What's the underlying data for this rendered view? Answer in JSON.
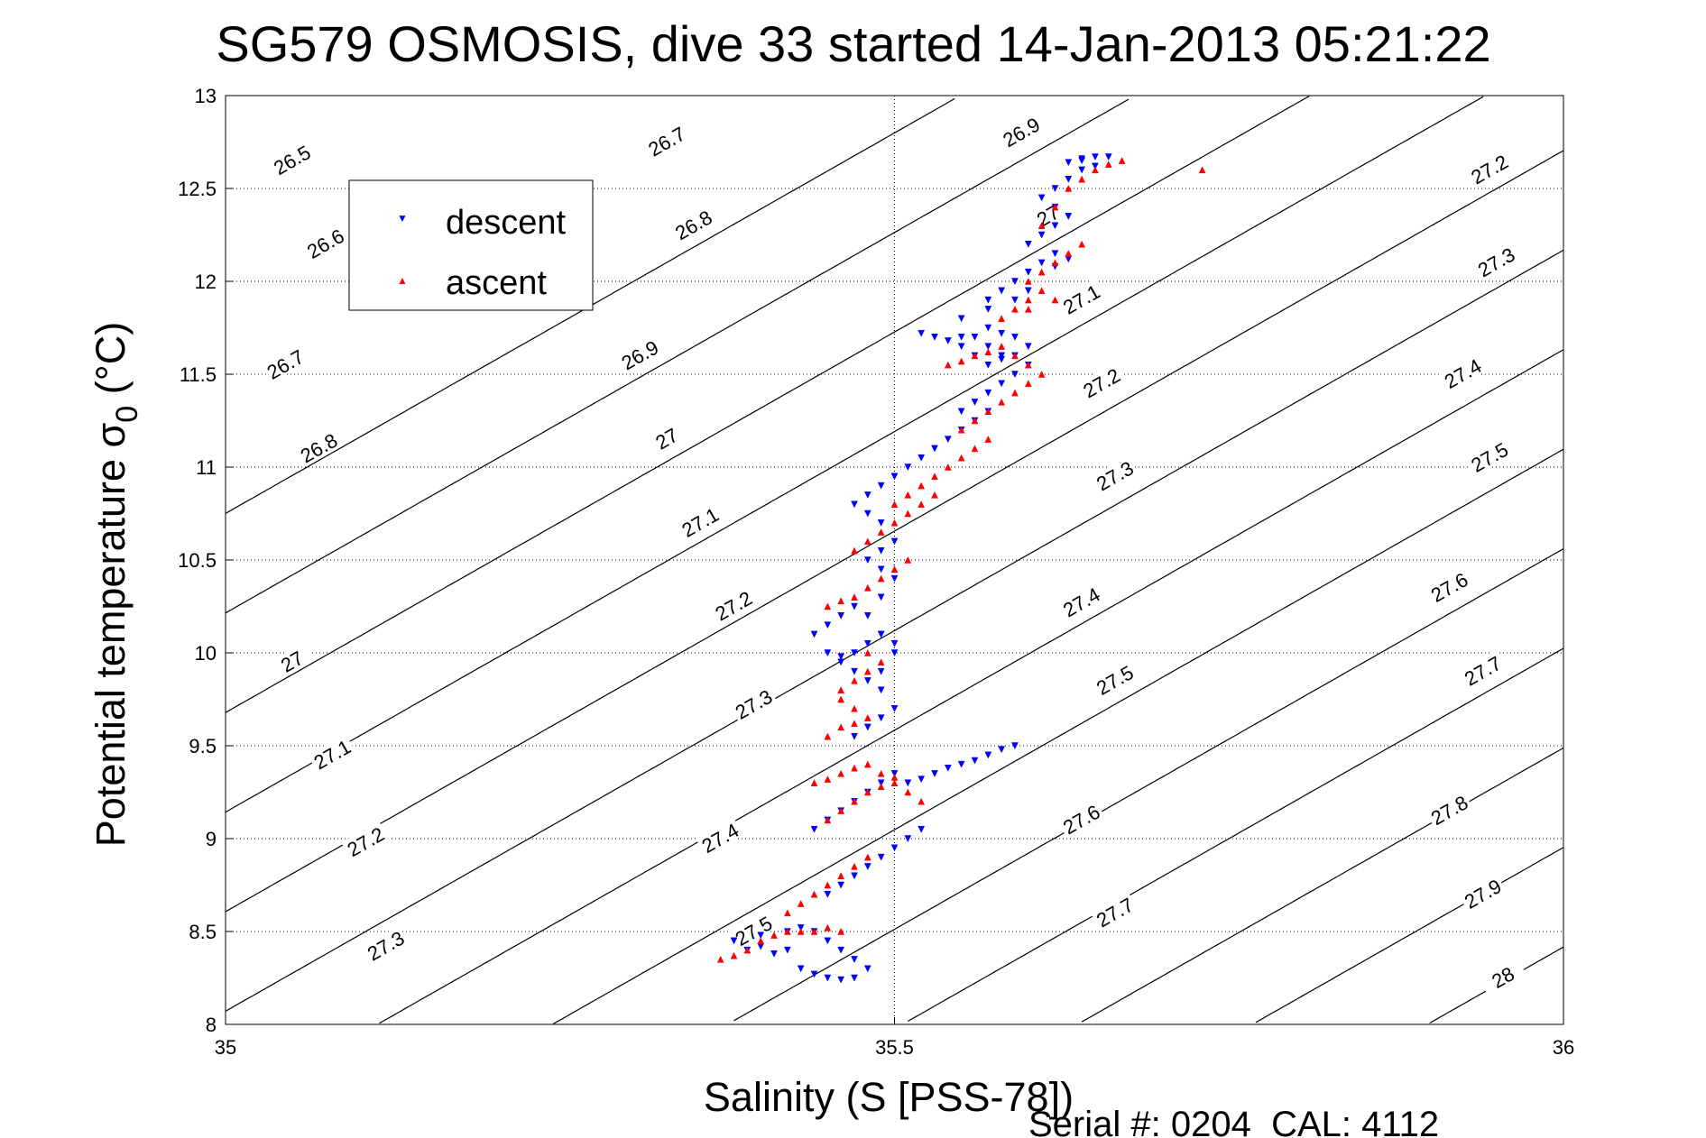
{
  "chart_data": {
    "type": "scatter",
    "title": "SG579 OSMOSIS, dive 33 started 14-Jan-2013 05:21:22",
    "xlabel": "Salinity (S [PSS-78])",
    "ylabel_main": "Potential temperature ",
    "ylabel_sigma": "σ",
    "ylabel_sub": "0",
    "ylabel_unit": " (°C)",
    "xlim": [
      35,
      36
    ],
    "ylim": [
      8,
      13
    ],
    "x_ticks": [
      "35",
      "35.5",
      "36"
    ],
    "y_ticks": [
      "8",
      "8.5",
      "9",
      "9.5",
      "10",
      "10.5",
      "11",
      "11.5",
      "12",
      "12.5",
      "13"
    ],
    "grid": "dotted",
    "legend": {
      "position": "top-left",
      "entries": [
        {
          "label": "descent",
          "color": "#0000ff",
          "marker": "triangle-down"
        },
        {
          "label": "ascent",
          "color": "#ff0000",
          "marker": "triangle-up"
        }
      ]
    },
    "footer": "Serial #: 0204  CAL: 4112",
    "contour_levels": [
      {
        "value": 26.5,
        "label": "26.5"
      },
      {
        "value": 26.6,
        "label": "26.6"
      },
      {
        "value": 26.7,
        "label": "26.7"
      },
      {
        "value": 26.8,
        "label": "26.8"
      },
      {
        "value": 26.9,
        "label": "26.9"
      },
      {
        "value": 27.0,
        "label": "27"
      },
      {
        "value": 27.1,
        "label": "27.1"
      },
      {
        "value": 27.2,
        "label": "27.2"
      },
      {
        "value": 27.3,
        "label": "27.3"
      },
      {
        "value": 27.4,
        "label": "27.4"
      },
      {
        "value": 27.5,
        "label": "27.5"
      },
      {
        "value": 27.6,
        "label": "27.6"
      },
      {
        "value": 27.7,
        "label": "27.7"
      },
      {
        "value": 27.8,
        "label": "27.8"
      },
      {
        "value": 27.9,
        "label": "27.9"
      },
      {
        "value": 28.0,
        "label": "28"
      }
    ],
    "contour_label_positions": [
      {
        "label": "26.5",
        "x": 35.05,
        "y": 12.65
      },
      {
        "label": "26.6",
        "x": 35.075,
        "y": 12.2
      },
      {
        "label": "26.7",
        "x": 35.045,
        "y": 11.55
      },
      {
        "label": "26.8",
        "x": 35.07,
        "y": 11.1
      },
      {
        "label": "27",
        "x": 35.05,
        "y": 9.95
      },
      {
        "label": "27.1",
        "x": 35.08,
        "y": 9.45
      },
      {
        "label": "27.2",
        "x": 35.105,
        "y": 8.98
      },
      {
        "label": "27.3",
        "x": 35.12,
        "y": 8.42
      },
      {
        "label": "26.7",
        "x": 35.33,
        "y": 12.75
      },
      {
        "label": "26.8",
        "x": 35.35,
        "y": 12.3
      },
      {
        "label": "26.9",
        "x": 35.31,
        "y": 11.6
      },
      {
        "label": "27",
        "x": 35.33,
        "y": 11.15
      },
      {
        "label": "27.1",
        "x": 35.355,
        "y": 10.7
      },
      {
        "label": "27.2",
        "x": 35.38,
        "y": 10.25
      },
      {
        "label": "27.3",
        "x": 35.395,
        "y": 9.72
      },
      {
        "label": "27.4",
        "x": 35.37,
        "y": 9.0
      },
      {
        "label": "27.5",
        "x": 35.395,
        "y": 8.5
      },
      {
        "label": "26.9",
        "x": 35.595,
        "y": 12.8
      },
      {
        "label": "27",
        "x": 35.615,
        "y": 12.35
      },
      {
        "label": "27.1",
        "x": 35.64,
        "y": 11.9
      },
      {
        "label": "27.2",
        "x": 35.655,
        "y": 11.45
      },
      {
        "label": "27.3",
        "x": 35.665,
        "y": 10.95
      },
      {
        "label": "27.4",
        "x": 35.64,
        "y": 10.27
      },
      {
        "label": "27.5",
        "x": 35.665,
        "y": 9.85
      },
      {
        "label": "27.6",
        "x": 35.64,
        "y": 9.1
      },
      {
        "label": "27.7",
        "x": 35.665,
        "y": 8.6
      },
      {
        "label": "27.2",
        "x": 35.945,
        "y": 12.6
      },
      {
        "label": "27.3",
        "x": 35.95,
        "y": 12.1
      },
      {
        "label": "27.4",
        "x": 35.925,
        "y": 11.5
      },
      {
        "label": "27.5",
        "x": 35.945,
        "y": 11.05
      },
      {
        "label": "27.6",
        "x": 35.915,
        "y": 10.35
      },
      {
        "label": "27.7",
        "x": 35.94,
        "y": 9.9
      },
      {
        "label": "27.8",
        "x": 35.915,
        "y": 9.15
      },
      {
        "label": "27.9",
        "x": 35.94,
        "y": 8.7
      },
      {
        "label": "28",
        "x": 35.955,
        "y": 8.25
      }
    ],
    "series": [
      {
        "name": "descent",
        "color": "#0000ff",
        "marker": "triangle-down",
        "x": [
          35.43,
          35.44,
          35.45,
          35.46,
          35.47,
          35.48,
          35.47,
          35.46,
          35.45,
          35.44,
          35.43,
          35.42,
          35.45,
          35.46,
          35.47,
          35.48,
          35.49,
          35.5,
          35.51,
          35.52,
          35.44,
          35.45,
          35.46,
          35.47,
          35.48,
          35.49,
          35.5,
          35.51,
          35.52,
          35.53,
          35.54,
          35.55,
          35.56,
          35.57,
          35.58,
          35.59,
          35.47,
          35.48,
          35.49,
          35.5,
          35.49,
          35.48,
          35.47,
          35.46,
          35.49,
          35.5,
          35.49,
          35.48,
          35.47,
          35.46,
          35.45,
          35.5,
          35.49,
          35.48,
          35.47,
          35.46,
          35.45,
          35.44,
          35.49,
          35.5,
          35.49,
          35.48,
          35.49,
          35.5,
          35.49,
          35.48,
          35.47,
          35.48,
          35.49,
          35.5,
          35.5,
          35.51,
          35.52,
          35.53,
          35.54,
          35.55,
          35.56,
          35.57,
          35.55,
          35.56,
          35.57,
          35.58,
          35.59,
          35.6,
          35.58,
          35.57,
          35.56,
          35.55,
          35.56,
          35.57,
          35.58,
          35.59,
          35.6,
          35.59,
          35.58,
          35.57,
          35.55,
          35.54,
          35.53,
          35.52,
          35.55,
          35.57,
          35.59,
          35.6,
          35.57,
          35.58,
          35.59,
          35.6,
          35.61,
          35.62,
          35.63,
          35.62,
          35.6,
          35.61,
          35.62,
          35.63,
          35.62,
          35.61,
          35.62,
          35.63,
          35.64,
          35.65,
          35.64,
          35.63,
          35.64,
          35.65,
          35.66,
          35.42,
          35.41,
          35.4,
          35.39,
          35.38,
          35.4
        ],
        "y": [
          8.3,
          8.27,
          8.25,
          8.24,
          8.25,
          8.3,
          8.35,
          8.4,
          8.45,
          8.5,
          8.52,
          8.5,
          8.7,
          8.75,
          8.8,
          8.85,
          8.9,
          8.95,
          9.0,
          9.05,
          9.05,
          9.1,
          9.15,
          9.2,
          9.25,
          9.3,
          9.35,
          9.3,
          9.32,
          9.35,
          9.38,
          9.4,
          9.42,
          9.45,
          9.48,
          9.5,
          9.55,
          9.6,
          9.65,
          9.7,
          9.8,
          9.85,
          9.9,
          9.95,
          9.9,
          10.0,
          10.1,
          10.05,
          10.0,
          9.98,
          10.0,
          10.05,
          10.1,
          10.2,
          10.25,
          10.2,
          10.15,
          10.1,
          10.3,
          10.4,
          10.45,
          10.5,
          10.55,
          10.6,
          10.7,
          10.75,
          10.8,
          10.85,
          10.9,
          10.95,
          10.95,
          11.0,
          11.05,
          11.1,
          11.15,
          11.2,
          11.25,
          11.3,
          11.3,
          11.35,
          11.4,
          11.45,
          11.5,
          11.55,
          11.6,
          11.65,
          11.7,
          11.65,
          11.6,
          11.55,
          11.58,
          11.6,
          11.65,
          11.7,
          11.72,
          11.75,
          11.7,
          11.68,
          11.7,
          11.72,
          11.8,
          11.85,
          11.9,
          11.95,
          11.9,
          11.95,
          12.0,
          12.05,
          12.1,
          12.15,
          12.12,
          12.08,
          12.2,
          12.25,
          12.3,
          12.35,
          12.4,
          12.45,
          12.5,
          12.55,
          12.6,
          12.62,
          12.65,
          12.64,
          12.66,
          12.67,
          12.67,
          8.4,
          8.38,
          8.42,
          8.4,
          8.45,
          8.48
        ]
      },
      {
        "name": "ascent",
        "color": "#ff0000",
        "marker": "triangle-up",
        "x": [
          35.37,
          35.38,
          35.39,
          35.4,
          35.41,
          35.42,
          35.43,
          35.44,
          35.45,
          35.46,
          35.42,
          35.43,
          35.44,
          35.45,
          35.46,
          35.47,
          35.48,
          35.45,
          35.46,
          35.47,
          35.48,
          35.49,
          35.5,
          35.51,
          35.52,
          35.44,
          35.45,
          35.46,
          35.47,
          35.48,
          35.49,
          35.5,
          35.45,
          35.46,
          35.47,
          35.48,
          35.47,
          35.46,
          35.46,
          35.47,
          35.48,
          35.49,
          35.48,
          35.45,
          35.46,
          35.47,
          35.48,
          35.49,
          35.5,
          35.51,
          35.47,
          35.48,
          35.49,
          35.5,
          35.51,
          35.52,
          35.53,
          35.5,
          35.51,
          35.52,
          35.53,
          35.54,
          35.55,
          35.56,
          35.57,
          35.55,
          35.56,
          35.57,
          35.58,
          35.59,
          35.6,
          35.54,
          35.55,
          35.56,
          35.57,
          35.58,
          35.59,
          35.6,
          35.61,
          35.58,
          35.59,
          35.6,
          35.61,
          35.62,
          35.6,
          35.6,
          35.61,
          35.62,
          35.63,
          35.64,
          35.61,
          35.62,
          35.63,
          35.64,
          35.65,
          35.66,
          35.67,
          35.73
        ],
        "y": [
          8.35,
          8.37,
          8.4,
          8.45,
          8.48,
          8.5,
          8.5,
          8.5,
          8.52,
          8.5,
          8.6,
          8.65,
          8.7,
          8.75,
          8.8,
          8.85,
          8.9,
          9.1,
          9.15,
          9.2,
          9.25,
          9.28,
          9.3,
          9.25,
          9.2,
          9.3,
          9.32,
          9.35,
          9.38,
          9.4,
          9.35,
          9.33,
          9.55,
          9.6,
          9.62,
          9.65,
          9.7,
          9.75,
          9.8,
          9.85,
          9.9,
          9.95,
          10.0,
          10.25,
          10.28,
          10.3,
          10.35,
          10.4,
          10.45,
          10.5,
          10.55,
          10.6,
          10.65,
          10.7,
          10.75,
          10.8,
          10.85,
          10.8,
          10.85,
          10.9,
          10.95,
          11.0,
          11.05,
          11.1,
          11.15,
          11.2,
          11.25,
          11.3,
          11.35,
          11.4,
          11.45,
          11.55,
          11.57,
          11.6,
          11.62,
          11.65,
          11.6,
          11.55,
          11.5,
          11.8,
          11.85,
          11.9,
          11.95,
          11.9,
          11.85,
          12.0,
          12.05,
          12.1,
          12.15,
          12.2,
          12.3,
          12.4,
          12.5,
          12.55,
          12.6,
          12.63,
          12.65,
          12.6
        ]
      }
    ]
  }
}
